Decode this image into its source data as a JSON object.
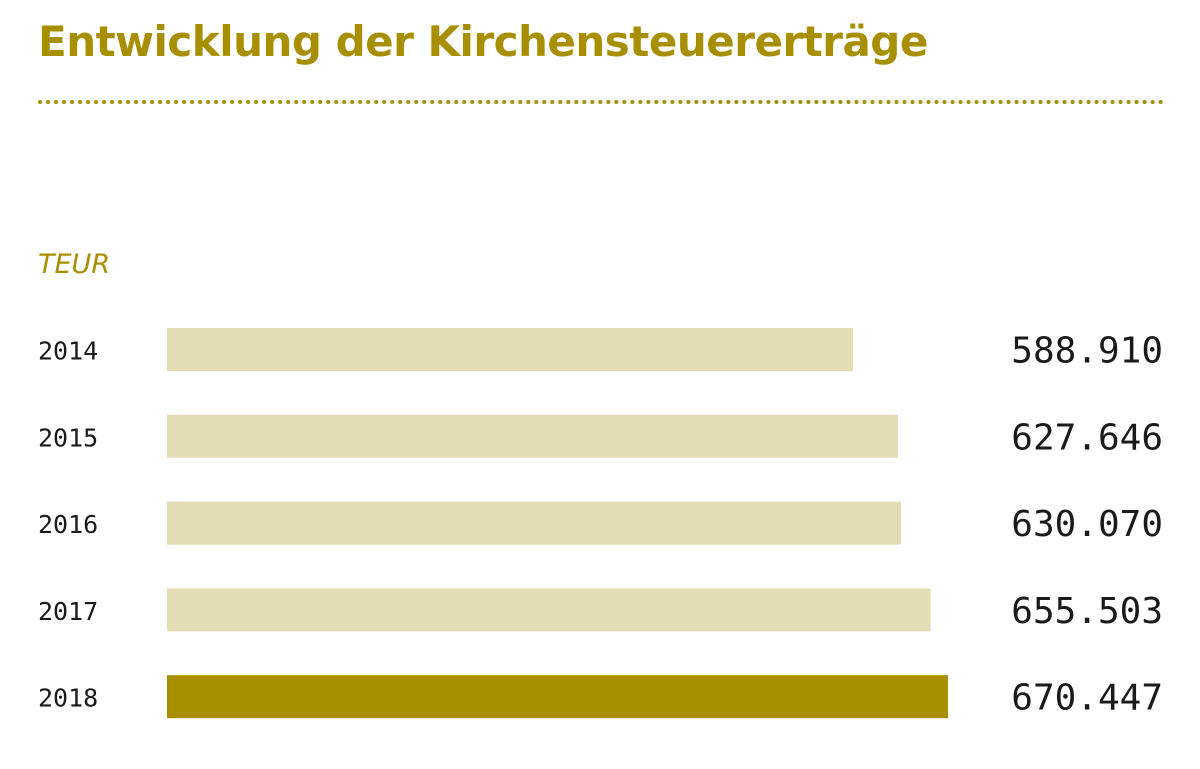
{
  "chart_data": {
    "type": "bar",
    "orientation": "horizontal",
    "title": "Entwicklung der Kirchensteuererträge",
    "unit_label": "TEUR",
    "categories": [
      "2014",
      "2015",
      "2016",
      "2017",
      "2018"
    ],
    "values": [
      588910,
      627646,
      630070,
      655503,
      670447
    ],
    "value_labels": [
      "588.910",
      "627.646",
      "630.070",
      "655.503",
      "670.447"
    ],
    "xlim": [
      0,
      670447
    ],
    "grid": false,
    "legend": "none",
    "colors": {
      "title": "#a88f00",
      "bar_default": "#e3dcb5",
      "bar_highlight": "#a88f00",
      "text": "#1a1a1a"
    },
    "highlight_category": "2018"
  }
}
